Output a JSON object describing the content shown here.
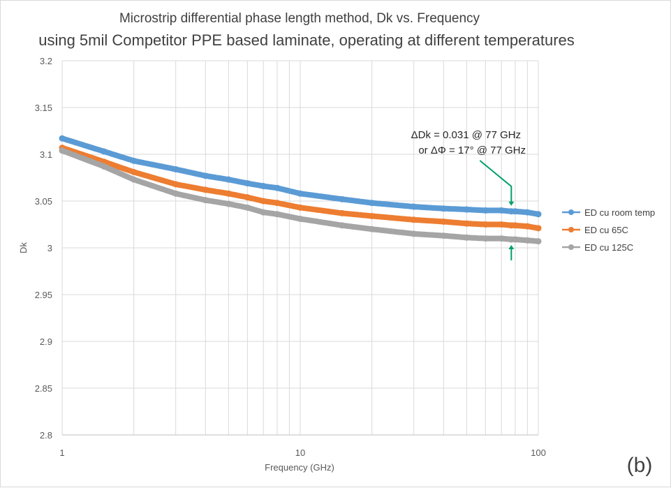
{
  "chart_data": {
    "type": "line",
    "title": "Microstrip differential phase length method, Dk vs. Frequency",
    "subtitle": "using 5mil Competitor PPE based laminate, operating at different temperatures",
    "xlabel": "Frequency (GHz)",
    "ylabel": "Dk",
    "xscale": "log",
    "xlim": [
      1,
      100
    ],
    "ylim": [
      2.8,
      3.2
    ],
    "x_ticks": [
      "1",
      "10",
      "100"
    ],
    "y_ticks": [
      "2.8",
      "2.85",
      "2.9",
      "2.95",
      "3",
      "3.05",
      "3.1",
      "3.15",
      "3.2"
    ],
    "legend_position": "right",
    "grid": true,
    "series": [
      {
        "name": "ED cu room temp",
        "color": "#5b9bd5",
        "x": [
          1,
          1.5,
          2,
          3,
          4,
          5,
          6,
          7,
          8,
          10,
          15,
          20,
          30,
          40,
          50,
          60,
          70,
          77,
          80,
          90,
          100
        ],
        "values": [
          3.117,
          3.103,
          3.093,
          3.084,
          3.077,
          3.073,
          3.069,
          3.066,
          3.064,
          3.058,
          3.052,
          3.048,
          3.044,
          3.042,
          3.041,
          3.04,
          3.04,
          3.039,
          3.039,
          3.038,
          3.036
        ]
      },
      {
        "name": "ED cu 65C",
        "color": "#ed7d31",
        "x": [
          1,
          1.5,
          2,
          3,
          4,
          5,
          6,
          7,
          8,
          10,
          15,
          20,
          30,
          40,
          50,
          60,
          70,
          77,
          80,
          90,
          100
        ],
        "values": [
          3.107,
          3.092,
          3.081,
          3.068,
          3.062,
          3.058,
          3.054,
          3.05,
          3.048,
          3.043,
          3.037,
          3.034,
          3.03,
          3.028,
          3.026,
          3.025,
          3.025,
          3.024,
          3.024,
          3.023,
          3.021
        ]
      },
      {
        "name": "ED cu 125C",
        "color": "#a5a5a5",
        "x": [
          1,
          1.5,
          2,
          3,
          4,
          5,
          6,
          7,
          8,
          10,
          15,
          20,
          30,
          40,
          50,
          60,
          70,
          77,
          80,
          90,
          100
        ],
        "values": [
          3.104,
          3.087,
          3.073,
          3.058,
          3.051,
          3.047,
          3.043,
          3.038,
          3.036,
          3.031,
          3.024,
          3.02,
          3.015,
          3.013,
          3.011,
          3.01,
          3.01,
          3.009,
          3.009,
          3.008,
          3.007
        ]
      }
    ],
    "annotations": [
      {
        "text": "ΔDk = 0.031 @ 77 GHz",
        "x": 77
      },
      {
        "text": "or ΔΦ = 17° @ 77 GHz",
        "x": 77
      }
    ],
    "arrow_color": "#00a06b",
    "panel_label": "(b)"
  }
}
